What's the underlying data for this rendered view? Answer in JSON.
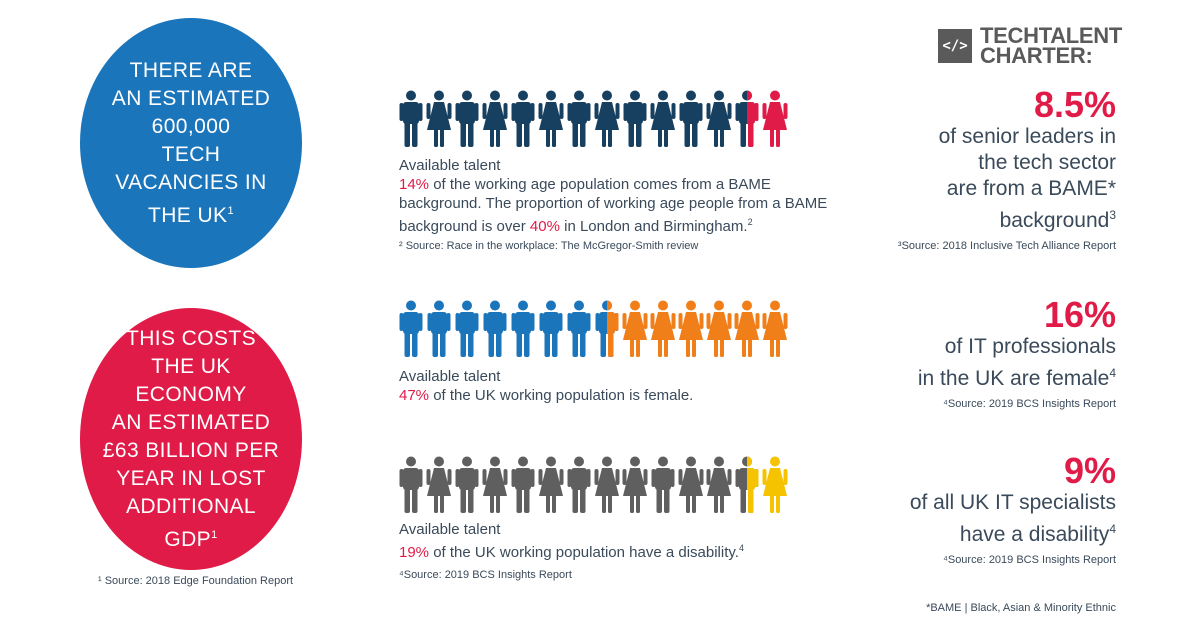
{
  "circles": {
    "blue": {
      "lines": [
        "THERE ARE",
        "AN ESTIMATED",
        "600,000",
        "TECH",
        "VACANCIES IN"
      ],
      "last": "THE UK",
      "sup": "1"
    },
    "red": {
      "lines": [
        "THIS COSTS",
        "THE UK ECONOMY",
        "AN ESTIMATED",
        "£63 BILLION PER",
        "YEAR IN LOST",
        "ADDITIONAL"
      ],
      "last": "GDP",
      "sup": "1"
    }
  },
  "left_note": "¹ Source: 2018 Edge Foundation Report",
  "rows": [
    {
      "icons": [
        {
          "g": "m",
          "c": "#173f5f"
        },
        {
          "g": "f",
          "c": "#173f5f"
        },
        {
          "g": "m",
          "c": "#173f5f"
        },
        {
          "g": "f",
          "c": "#173f5f"
        },
        {
          "g": "m",
          "c": "#173f5f"
        },
        {
          "g": "f",
          "c": "#173f5f"
        },
        {
          "g": "m",
          "c": "#173f5f"
        },
        {
          "g": "f",
          "c": "#173f5f"
        },
        {
          "g": "m",
          "c": "#173f5f"
        },
        {
          "g": "f",
          "c": "#173f5f"
        },
        {
          "g": "m",
          "c": "#173f5f"
        },
        {
          "g": "f",
          "c": "#173f5f"
        },
        {
          "g": "m",
          "c": "#173f5f",
          "split": "#e11b48"
        },
        {
          "g": "f",
          "c": "#e11b48"
        }
      ],
      "title": "Available talent",
      "pct1": "14%",
      "text1": " of the working age population comes from a BAME background. The proportion of working age people from a BAME background is over ",
      "pct2": "40%",
      "text2": " in London and Birmingham.",
      "sup": "2",
      "source": "² Source: Race in the workplace: The McGregor-Smith review"
    },
    {
      "icons": [
        {
          "g": "m",
          "c": "#1b75bb"
        },
        {
          "g": "m",
          "c": "#1b75bb"
        },
        {
          "g": "m",
          "c": "#1b75bb"
        },
        {
          "g": "m",
          "c": "#1b75bb"
        },
        {
          "g": "m",
          "c": "#1b75bb"
        },
        {
          "g": "m",
          "c": "#1b75bb"
        },
        {
          "g": "m",
          "c": "#1b75bb"
        },
        {
          "g": "m",
          "c": "#1b75bb",
          "split": "#f07f19"
        },
        {
          "g": "f",
          "c": "#f07f19"
        },
        {
          "g": "f",
          "c": "#f07f19"
        },
        {
          "g": "f",
          "c": "#f07f19"
        },
        {
          "g": "f",
          "c": "#f07f19"
        },
        {
          "g": "f",
          "c": "#f07f19"
        },
        {
          "g": "f",
          "c": "#f07f19"
        }
      ],
      "title": "Available talent",
      "pct1": "47%",
      "text1": " of the UK working population is female."
    },
    {
      "icons": [
        {
          "g": "m",
          "c": "#5f5f5f"
        },
        {
          "g": "f",
          "c": "#5f5f5f"
        },
        {
          "g": "m",
          "c": "#5f5f5f"
        },
        {
          "g": "f",
          "c": "#5f5f5f"
        },
        {
          "g": "m",
          "c": "#5f5f5f"
        },
        {
          "g": "f",
          "c": "#5f5f5f"
        },
        {
          "g": "m",
          "c": "#5f5f5f"
        },
        {
          "g": "f",
          "c": "#5f5f5f"
        },
        {
          "g": "f",
          "c": "#5f5f5f"
        },
        {
          "g": "m",
          "c": "#5f5f5f"
        },
        {
          "g": "f",
          "c": "#5f5f5f"
        },
        {
          "g": "f",
          "c": "#5f5f5f"
        },
        {
          "g": "m",
          "c": "#5f5f5f",
          "split": "#f5c300"
        },
        {
          "g": "f",
          "c": "#f5c300"
        }
      ],
      "title": "Available talent",
      "pct1": "19%",
      "text1": " of the UK working population have a disability.",
      "sup": "4",
      "source": "⁴Source: 2019 BCS Insights Report"
    }
  ],
  "logo": {
    "glyph": "</>",
    "line1": "TECHTALENT",
    "line2": "CHARTER:"
  },
  "stats": [
    {
      "num": "8.5%",
      "lines": [
        "of senior leaders in",
        "the tech sector",
        "are from a BAME*"
      ],
      "last": "background",
      "sup": "3",
      "source": "³Source: 2018 Inclusive Tech Alliance Report"
    },
    {
      "num": "16%",
      "lines": [
        "of IT professionals"
      ],
      "last": "in the UK are female",
      "sup": "4",
      "source": "⁴Source: 2019 BCS Insights Report"
    },
    {
      "num": "9%",
      "lines": [
        "of all UK IT specialists"
      ],
      "last": "have a disability",
      "sup": "4",
      "source": "⁴Source: 2019 BCS Insights Report"
    }
  ],
  "footnote": "*BAME | Black, Asian & Minority Ethnic"
}
